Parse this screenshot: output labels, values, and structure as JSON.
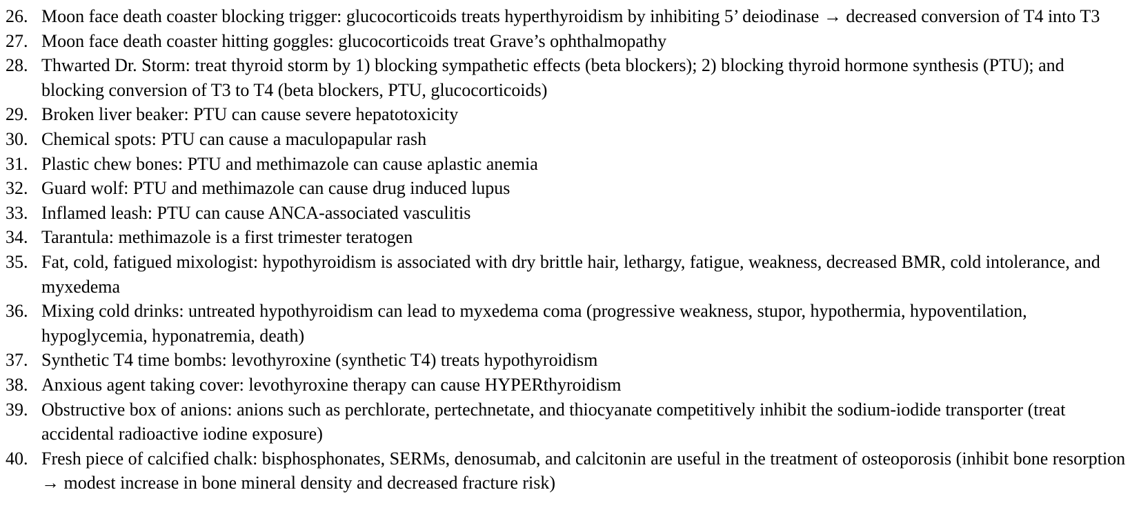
{
  "items": [
    {
      "num": "26.",
      "text": "Moon face death coaster blocking trigger: glucocorticoids treats hyperthyroidism by inhibiting 5’ deiodinase → decreased conversion of T4 into T3"
    },
    {
      "num": "27.",
      "text": "Moon face death coaster hitting goggles: glucocorticoids treat Grave’s ophthalmopathy"
    },
    {
      "num": "28.",
      "text": "Thwarted Dr. Storm: treat thyroid storm by 1) blocking sympathetic effects (beta blockers); 2) blocking thyroid hormone synthesis (PTU); and blocking conversion of T3 to T4 (beta blockers, PTU, glucocorticoids)"
    },
    {
      "num": "29.",
      "text": "Broken liver beaker: PTU can cause severe hepatotoxicity"
    },
    {
      "num": "30.",
      "text": "Chemical spots: PTU can cause a maculopapular rash"
    },
    {
      "num": "31.",
      "text": "Plastic chew bones: PTU and methimazole can cause aplastic anemia"
    },
    {
      "num": "32.",
      "text": "Guard wolf: PTU and methimazole can cause drug induced lupus"
    },
    {
      "num": "33.",
      "text": "Inflamed leash: PTU can cause ANCA-associated vasculitis"
    },
    {
      "num": "34.",
      "text": "Tarantula: methimazole is a first trimester teratogen"
    },
    {
      "num": "35.",
      "text": "Fat, cold, fatigued mixologist: hypothyroidism is associated with dry brittle hair, lethargy, fatigue, weakness, decreased BMR, cold intolerance, and myxedema"
    },
    {
      "num": "36.",
      "text": "Mixing cold drinks: untreated hypothyroidism can lead to myxedema coma (progressive weakness, stupor, hypothermia, hypoventilation, hypoglycemia, hyponatremia, death)"
    },
    {
      "num": "37.",
      "text": "Synthetic T4 time bombs: levothyroxine (synthetic T4) treats hypothyroidism"
    },
    {
      "num": "38.",
      "text": "Anxious agent taking cover: levothyroxine therapy can cause HYPERthyroidism"
    },
    {
      "num": "39.",
      "text": "Obstructive box of anions: anions such as perchlorate, pertechnetate, and thiocyanate competitively inhibit the sodium-iodide transporter (treat accidental radioactive iodine exposure)"
    },
    {
      "num": "40.",
      "text": "Fresh piece of calcified chalk: bisphosphonates, SERMs, denosumab, and calcitonin are useful in the treatment of osteoporosis (inhibit bone resorption → modest increase in bone mineral density and decreased fracture risk)"
    }
  ]
}
